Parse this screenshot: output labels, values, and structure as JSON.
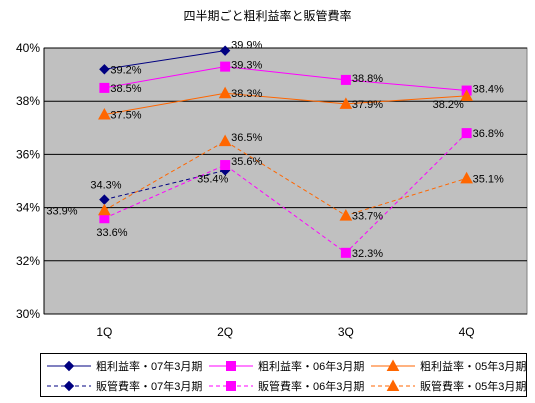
{
  "chart_data": {
    "type": "line",
    "title": "四半期ごと粗利益率と販管費率",
    "categories": [
      "1Q",
      "2Q",
      "3Q",
      "4Q"
    ],
    "ylim": [
      30,
      40
    ],
    "yticks": [
      "30%",
      "32%",
      "34%",
      "36%",
      "38%",
      "40%"
    ],
    "grid": true,
    "legend_position": "bottom",
    "plot_background": "#c0c0c0",
    "series": [
      {
        "name": "粗利益率・07年3月期",
        "values": [
          39.2,
          39.9,
          null,
          null
        ],
        "labels": [
          "39.2%",
          "39.9%",
          "",
          ""
        ],
        "color": "#000080",
        "marker": "diamond",
        "dash": false
      },
      {
        "name": "粗利益率・06年3月期",
        "values": [
          38.5,
          39.3,
          38.8,
          38.4
        ],
        "labels": [
          "38.5%",
          "39.3%",
          "38.8%",
          "38.4%"
        ],
        "color": "#ff00ff",
        "marker": "square",
        "dash": false
      },
      {
        "name": "粗利益率・05年3月期",
        "values": [
          37.5,
          38.3,
          37.9,
          38.2
        ],
        "labels": [
          "37.5%",
          "38.3%",
          "37.9%",
          "38.2%"
        ],
        "color": "#ff6600",
        "marker": "triangle",
        "dash": false
      },
      {
        "name": "販管費率・07年3月期",
        "values": [
          34.3,
          35.4,
          null,
          null
        ],
        "labels": [
          "34.3%",
          "35.4%",
          "",
          ""
        ],
        "color": "#000080",
        "marker": "diamond",
        "dash": true
      },
      {
        "name": "販管費率・06年3月期",
        "values": [
          33.6,
          35.6,
          32.3,
          36.8
        ],
        "labels": [
          "33.6%",
          "35.6%",
          "32.3%",
          "36.8%"
        ],
        "color": "#ff00ff",
        "marker": "square",
        "dash": true
      },
      {
        "name": "販管費率・05年3月期",
        "values": [
          33.9,
          36.5,
          33.7,
          35.1
        ],
        "labels": [
          "33.9%",
          "36.5%",
          "33.7%",
          "35.1%"
        ],
        "color": "#ff6600",
        "marker": "triangle",
        "dash": true
      }
    ]
  }
}
